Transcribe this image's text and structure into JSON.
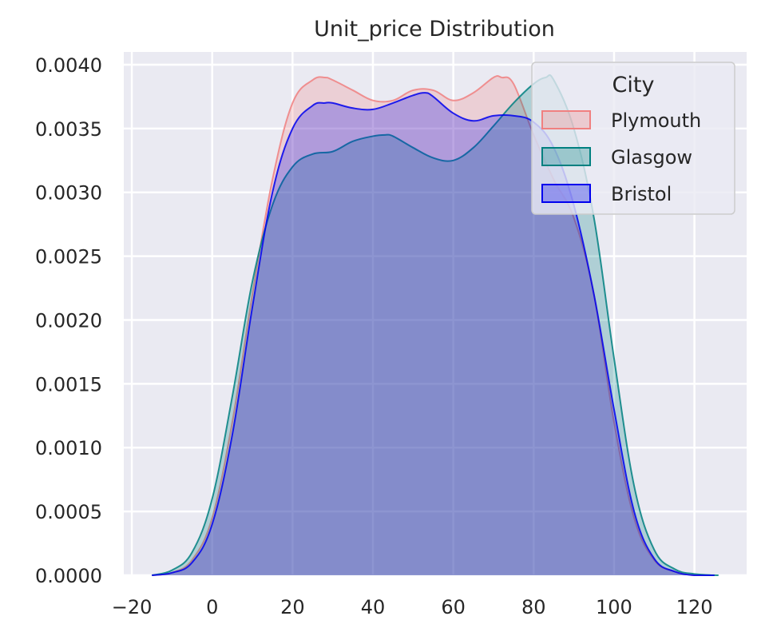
{
  "chart_data": {
    "type": "area",
    "title": "Unit_price Distribution",
    "xlabel": "",
    "ylabel": "",
    "xlim": [
      -22,
      133
    ],
    "ylim": [
      0,
      0.0041
    ],
    "x_ticks": [
      -20,
      0,
      20,
      40,
      60,
      80,
      100,
      120
    ],
    "x_tick_labels": [
      "−20",
      "0",
      "20",
      "40",
      "60",
      "80",
      "100",
      "120"
    ],
    "y_ticks": [
      0,
      0.0005,
      0.001,
      0.0015,
      0.002,
      0.0025,
      0.003,
      0.0035,
      0.004
    ],
    "y_tick_labels": [
      "0.0000",
      "0.0005",
      "0.0010",
      "0.0015",
      "0.0020",
      "0.0025",
      "0.0030",
      "0.0035",
      "0.0040"
    ],
    "grid": true,
    "legend": {
      "title": "City",
      "placement": "top-right"
    },
    "series": [
      {
        "name": "Plymouth",
        "color": "#f08080",
        "x": [
          -15,
          -10,
          -5,
          0,
          5,
          10,
          15,
          20,
          25,
          28,
          30,
          35,
          40,
          45,
          50,
          55,
          60,
          65,
          70,
          72,
          75,
          80,
          85,
          90,
          95,
          100,
          105,
          110,
          115,
          120,
          125
        ],
        "y": [
          0.0,
          2e-05,
          0.00012,
          0.00045,
          0.0012,
          0.0022,
          0.0031,
          0.0037,
          0.00388,
          0.0039,
          0.00388,
          0.0038,
          0.00372,
          0.00372,
          0.0038,
          0.0038,
          0.00372,
          0.00378,
          0.0039,
          0.0039,
          0.00385,
          0.00345,
          0.0031,
          0.0028,
          0.0022,
          0.0012,
          0.00045,
          0.00012,
          3e-05,
          0.0,
          0.0
        ]
      },
      {
        "name": "Glasgow",
        "color": "#008080",
        "x": [
          -15,
          -10,
          -5,
          0,
          5,
          10,
          15,
          20,
          25,
          30,
          35,
          40,
          43,
          45,
          50,
          55,
          60,
          65,
          70,
          75,
          80,
          83,
          85,
          90,
          95,
          100,
          105,
          110,
          115,
          120,
          126
        ],
        "y": [
          0.0,
          4e-05,
          0.00018,
          0.0006,
          0.0014,
          0.0023,
          0.0029,
          0.0032,
          0.0033,
          0.00332,
          0.0034,
          0.00344,
          0.00345,
          0.00344,
          0.00335,
          0.00327,
          0.00325,
          0.00335,
          0.00352,
          0.0037,
          0.00385,
          0.0039,
          0.00388,
          0.0035,
          0.0028,
          0.0017,
          0.0007,
          0.0002,
          5e-05,
          1e-05,
          0.0
        ]
      },
      {
        "name": "Bristol",
        "color": "#0000ee",
        "x": [
          -15,
          -10,
          -5,
          0,
          5,
          10,
          15,
          20,
          25,
          28,
          30,
          35,
          40,
          45,
          50,
          53,
          55,
          60,
          65,
          70,
          75,
          80,
          85,
          90,
          95,
          100,
          105,
          110,
          115,
          120,
          125
        ],
        "y": [
          0.0,
          2e-05,
          0.0001,
          0.0004,
          0.0011,
          0.0021,
          0.003,
          0.0035,
          0.00368,
          0.0037,
          0.0037,
          0.00366,
          0.00365,
          0.0037,
          0.00376,
          0.00378,
          0.00375,
          0.00362,
          0.00356,
          0.0036,
          0.0036,
          0.00355,
          0.00335,
          0.0029,
          0.0022,
          0.0013,
          0.0005,
          0.00013,
          3e-05,
          0.0,
          0.0
        ]
      }
    ]
  }
}
